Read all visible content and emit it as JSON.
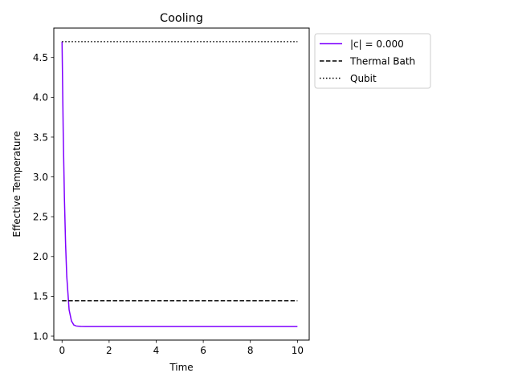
{
  "chart_data": {
    "type": "line",
    "title": "Cooling",
    "xlabel": "Time",
    "ylabel": "Effective Temperature",
    "xlim": [
      -0.35,
      10.5
    ],
    "ylim": [
      0.95,
      4.87
    ],
    "xticks": [
      0,
      2,
      4,
      6,
      8,
      10
    ],
    "xtick_labels": [
      "0",
      "2",
      "4",
      "6",
      "8",
      "10"
    ],
    "yticks": [
      1.0,
      1.5,
      2.0,
      2.5,
      3.0,
      3.5,
      4.0,
      4.5
    ],
    "ytick_labels": [
      "1.0",
      "1.5",
      "2.0",
      "2.5",
      "3.0",
      "3.5",
      "4.0",
      "4.5"
    ],
    "grid": false,
    "legend_position": "outside-top-right",
    "series": [
      {
        "name": "|c| = 0.000",
        "color": "#7f00ff",
        "style": "solid",
        "x": [
          0,
          0.05,
          0.1,
          0.15,
          0.2,
          0.3,
          0.4,
          0.5,
          0.6,
          0.8,
          1.0,
          1.5,
          2,
          3,
          4,
          5,
          6,
          7,
          8,
          9,
          10
        ],
        "y": [
          4.7,
          3.56,
          2.74,
          2.16,
          1.75,
          1.33,
          1.19,
          1.14,
          1.127,
          1.121,
          1.12,
          1.12,
          1.12,
          1.12,
          1.12,
          1.12,
          1.12,
          1.12,
          1.12,
          1.12,
          1.12
        ]
      },
      {
        "name": "Thermal Bath",
        "color": "#000000",
        "style": "dashed",
        "x": [
          0,
          10
        ],
        "y": [
          1.445,
          1.445
        ]
      },
      {
        "name": "Qubit",
        "color": "#000000",
        "style": "dotted",
        "x": [
          0,
          10
        ],
        "y": [
          4.7,
          4.7
        ]
      }
    ]
  }
}
